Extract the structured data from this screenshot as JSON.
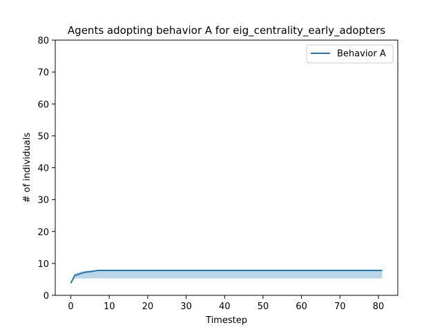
{
  "chart_data": {
    "type": "line",
    "title": "Agents adopting behavior A for eig_centrality_early_adopters",
    "xlabel": "Timestep",
    "ylabel": "# of individuals",
    "xlim": [
      -4.05,
      85.05
    ],
    "ylim": [
      0,
      80
    ],
    "xticks": [
      0,
      10,
      20,
      30,
      40,
      50,
      60,
      70,
      80
    ],
    "yticks": [
      0,
      10,
      20,
      30,
      40,
      50,
      60,
      70,
      80
    ],
    "grid": false,
    "legend_position": "top-right",
    "series": [
      {
        "name": "Behavior A",
        "color": "#1f77b4",
        "x": [
          0,
          1,
          2,
          3,
          4,
          5,
          6,
          7,
          8,
          9,
          10,
          81
        ],
        "y": [
          3.8,
          6.2,
          6.6,
          7.0,
          7.3,
          7.4,
          7.6,
          7.8,
          7.8,
          7.8,
          7.8,
          7.8
        ],
        "band_lower": [
          3.8,
          5.3,
          5.3,
          5.3,
          5.3,
          5.3,
          5.3,
          5.3,
          5.3,
          5.3,
          5.3,
          5.3
        ],
        "band_upper": [
          3.8,
          6.8,
          7.2,
          7.5,
          7.7,
          7.8,
          7.8,
          7.8,
          7.8,
          7.8,
          7.8,
          7.8
        ],
        "band_color": "#1f77b4",
        "band_opacity": 0.3
      }
    ]
  }
}
